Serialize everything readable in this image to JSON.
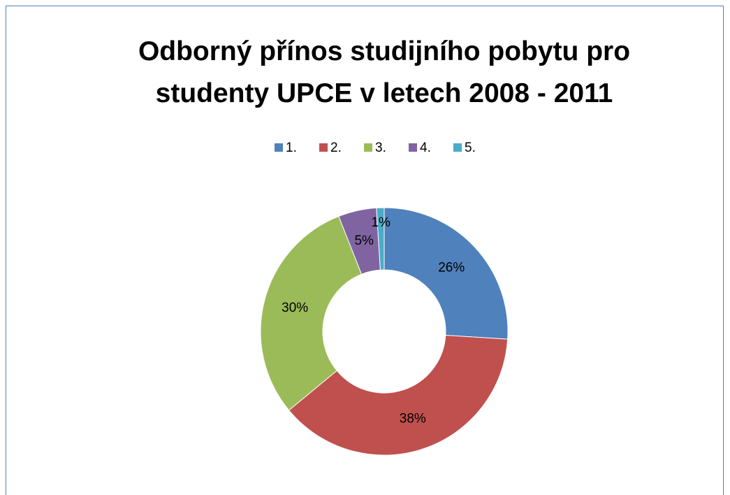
{
  "chart_data": {
    "type": "donut",
    "title": "Odborný přínos studijního pobytu pro studenty UPCE v letech 2008 - 2011",
    "categories": [
      "1.",
      "2.",
      "3.",
      "4.",
      "5."
    ],
    "values": [
      26,
      38,
      30,
      5,
      1
    ],
    "value_labels": [
      "26%",
      "38%",
      "30%",
      "5%",
      "1%"
    ],
    "colors": [
      "#4f81bd",
      "#c0504d",
      "#9bbb59",
      "#8064a2",
      "#4bacc6"
    ],
    "legend": "top"
  }
}
